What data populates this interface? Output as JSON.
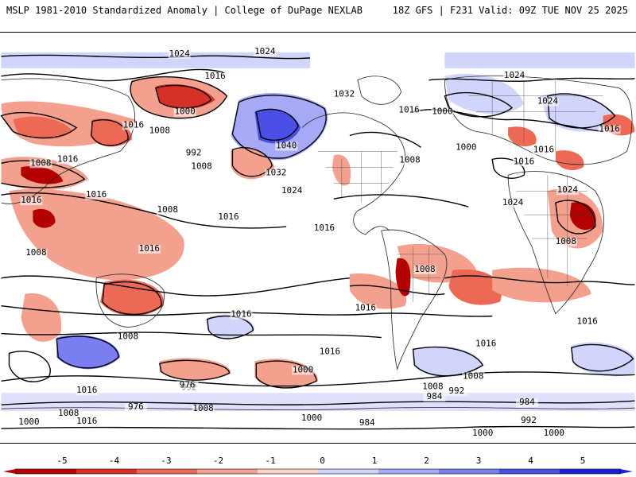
{
  "header": {
    "left": "MSLP 1981-2010 Standardized Anomaly | College of DuPage NEXLAB",
    "right": "18Z GFS | F231 Valid: 09Z TUE NOV 25 2025"
  },
  "colorbar": {
    "ticks": [
      {
        "label": "-5",
        "color": "#b30000"
      },
      {
        "label": "-4",
        "color": "#d73027"
      },
      {
        "label": "-3",
        "color": "#ec6a55"
      },
      {
        "label": "-2",
        "color": "#f4a08e"
      },
      {
        "label": "-1",
        "color": "#fbd3c9"
      },
      {
        "label": "0",
        "color": "#ffffff"
      },
      {
        "label": "1",
        "color": "#d1d4fb"
      },
      {
        "label": "2",
        "color": "#a6a9f5"
      },
      {
        "label": "3",
        "color": "#7a7ef0"
      },
      {
        "label": "4",
        "color": "#4a4fe6"
      },
      {
        "label": "5",
        "color": "#1a1fd8"
      }
    ]
  },
  "isobar_labels": [
    "1024",
    "1016",
    "1000",
    "1008",
    "992",
    "1024",
    "1040",
    "1032",
    "1032",
    "1024",
    "1016",
    "1016",
    "1016",
    "1008",
    "1016",
    "1008",
    "1016",
    "1008",
    "1016",
    "1008",
    "1008",
    "1016",
    "1016",
    "1016",
    "1008",
    "1000",
    "1016",
    "1008",
    "1000",
    "992",
    "984",
    "976",
    "976",
    "984",
    "992",
    "1008",
    "1000",
    "1016",
    "1008",
    "1016",
    "1024",
    "1008",
    "1016",
    "1000",
    "1016",
    "1024",
    "1000",
    "1008",
    "1016",
    "1024",
    "1016",
    "1016",
    "1000",
    "992",
    "984",
    "1000",
    "1008",
    "1016",
    "1024"
  ]
}
